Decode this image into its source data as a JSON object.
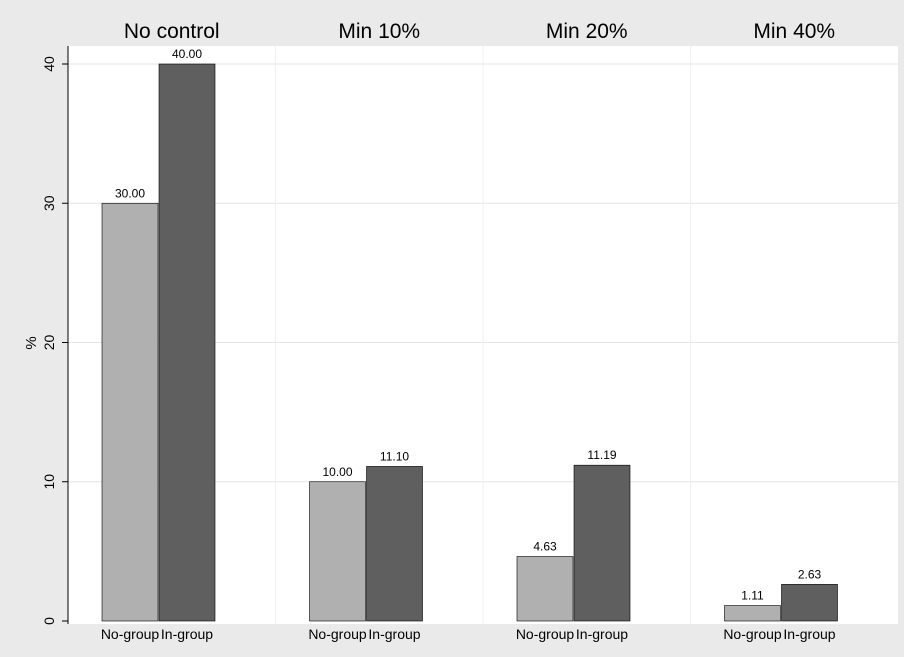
{
  "chart_data": {
    "type": "bar",
    "ylabel": "%",
    "ylim": [
      0,
      40
    ],
    "yticks": [
      0,
      10,
      20,
      30,
      40
    ],
    "grid": true,
    "colors": {
      "No-group": "#b0b0b0",
      "In-group": "#5f5f5f",
      "background": "#eaeaea",
      "panel": "#ffffff"
    },
    "panels": [
      {
        "title": "No control",
        "categories": [
          "No-group",
          "In-group"
        ],
        "values": [
          30.0,
          40.0
        ],
        "labels": [
          "30.00",
          "40.00"
        ]
      },
      {
        "title": "Min 10%",
        "categories": [
          "No-group",
          "In-group"
        ],
        "values": [
          10.0,
          11.1
        ],
        "labels": [
          "10.00",
          "11.10"
        ]
      },
      {
        "title": "Min 20%",
        "categories": [
          "No-group",
          "In-group"
        ],
        "values": [
          4.63,
          11.19
        ],
        "labels": [
          "4.63",
          "11.19"
        ]
      },
      {
        "title": "Min 40%",
        "categories": [
          "No-group",
          "In-group"
        ],
        "values": [
          1.11,
          2.63
        ],
        "labels": [
          "1.11",
          "2.63"
        ]
      }
    ]
  }
}
